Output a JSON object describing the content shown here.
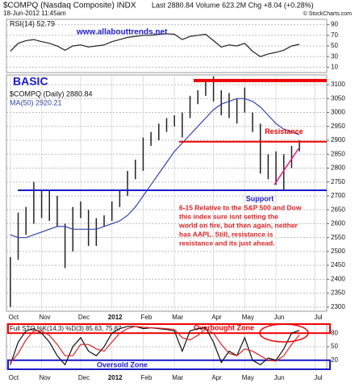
{
  "header": {
    "symbol": "$COMPQ (Nasdaq Composite) INDX",
    "date": "18-Jun-2012 11:45am",
    "quote": "Last 2880.84 Volume 623.2M Chg +8.04 (+0.28%)",
    "credit": "© StockCharts.com"
  },
  "chart_data": [
    {
      "type": "line",
      "title": "RSI(14) 52.79",
      "annotations": [
        "www.allabouttrends.net"
      ],
      "ylim": [
        0,
        100
      ],
      "yticks": [
        10,
        30,
        50,
        70,
        90
      ],
      "grid": true,
      "series": [
        {
          "name": "RSI(14)",
          "color": "#222222",
          "values": [
            40,
            55,
            60,
            62,
            58,
            55,
            50,
            42,
            50,
            52,
            48,
            50,
            52,
            58,
            62,
            66,
            68,
            70,
            70,
            72,
            73,
            72,
            62,
            68,
            70,
            72,
            60,
            48,
            52,
            50,
            55,
            40,
            30,
            35,
            38,
            42,
            50,
            53,
            null,
            null,
            null
          ]
        }
      ]
    },
    {
      "type": "ohlc",
      "title": "$COMPQ (Daily) 2880.84",
      "color": "#222222",
      "categories": [
        "Oct",
        null,
        null,
        null,
        "Nov",
        null,
        null,
        null,
        null,
        "Dec",
        null,
        null,
        null,
        "2012",
        null,
        null,
        null,
        "Feb",
        null,
        null,
        null,
        "Mar",
        null,
        null,
        null,
        null,
        "Apr",
        null,
        null,
        null,
        "May",
        null,
        null,
        null,
        "Jun",
        null,
        null,
        null,
        null,
        "Jul",
        null
      ],
      "high": [
        2480,
        2640,
        2660,
        2750,
        2720,
        2720,
        2700,
        2600,
        2660,
        2680,
        2650,
        2620,
        2630,
        2680,
        2720,
        2790,
        2830,
        2910,
        2930,
        2960,
        2980,
        2990,
        3000,
        3060,
        3080,
        3120,
        3130,
        3080,
        3070,
        3050,
        3090,
        3000,
        2960,
        2850,
        2860,
        2850,
        2880,
        2900,
        null,
        null,
        null
      ],
      "low": [
        2300,
        2470,
        2560,
        2600,
        2620,
        2610,
        2590,
        2440,
        2500,
        2620,
        2520,
        2520,
        2590,
        2610,
        2660,
        2700,
        2760,
        2790,
        2880,
        2900,
        2930,
        2950,
        2910,
        2980,
        3030,
        3060,
        3040,
        2990,
        2980,
        2960,
        3000,
        2930,
        2780,
        2760,
        2740,
        2720,
        2800,
        2860,
        null,
        null,
        null
      ],
      "series": [
        {
          "name": "MA(50) 2920.21",
          "color": "#3344aa",
          "values": [
            2560,
            2550,
            2550,
            2560,
            2570,
            2580,
            2590,
            2590,
            2580,
            2580,
            2580,
            2580,
            2590,
            2600,
            2610,
            2630,
            2660,
            2700,
            2740,
            2780,
            2820,
            2860,
            2890,
            2920,
            2950,
            2980,
            3010,
            3030,
            3040,
            3050,
            3050,
            3040,
            3020,
            2990,
            2960,
            2940,
            2930,
            2920,
            null,
            null,
            null
          ]
        }
      ],
      "ylim": [
        2285,
        3135
      ],
      "yticks": [
        2300,
        2350,
        2400,
        2450,
        2500,
        2550,
        2600,
        2650,
        2700,
        2750,
        2800,
        2850,
        2900,
        2950,
        3000,
        3050,
        3100
      ],
      "grid": true,
      "levels": [
        {
          "value": 3115,
          "color": "#ee0000"
        },
        {
          "value": 2895,
          "color": "#ee0000",
          "label": "Resistance"
        },
        {
          "value": 2720,
          "color": "#1a1acc",
          "label": "Support"
        }
      ],
      "annotations": [
        "BASIC"
      ],
      "note": [
        "6-15 Relative to the S&P 500 and Dow",
        "this index sure isnt setting the",
        "world on fire, but then again, neither",
        "has AAPL. Still, resistance is",
        "resistance and its just ahead."
      ]
    },
    {
      "type": "line",
      "title": "Full STO %K(14,3) %D(3) 85.63, 75.87",
      "categories": [
        "Oct",
        null,
        null,
        null,
        "Nov",
        null,
        null,
        null,
        null,
        "Dec",
        null,
        null,
        null,
        "2012",
        null,
        null,
        null,
        "Feb",
        null,
        null,
        null,
        "Mar",
        null,
        null,
        null,
        null,
        "Apr",
        null,
        null,
        null,
        "May",
        null,
        null,
        null,
        "Jun",
        null,
        null,
        null,
        null,
        "Jul",
        null
      ],
      "ylim": [
        0,
        100
      ],
      "yticks": [
        20,
        50,
        80
      ],
      "grid": true,
      "zones": [
        {
          "label": "Overbought Zone",
          "range": [
            80,
            100
          ],
          "color": "#ee0000"
        },
        {
          "label": "Oversold Zone",
          "range": [
            0,
            20
          ],
          "color": "#1a1acc"
        }
      ],
      "series": [
        {
          "name": "%K(14,3)",
          "color": "#111111",
          "values": [
            10,
            60,
            85,
            90,
            80,
            60,
            30,
            10,
            50,
            70,
            40,
            30,
            50,
            80,
            90,
            95,
            95,
            90,
            92,
            90,
            88,
            85,
            40,
            85,
            90,
            92,
            60,
            15,
            40,
            30,
            70,
            20,
            10,
            25,
            20,
            45,
            80,
            86,
            null,
            null,
            null
          ]
        },
        {
          "name": "%D(3)",
          "color": "#dd2222",
          "values": [
            15,
            35,
            65,
            85,
            85,
            75,
            55,
            30,
            30,
            55,
            55,
            45,
            40,
            60,
            80,
            90,
            95,
            93,
            92,
            91,
            90,
            88,
            70,
            65,
            75,
            90,
            80,
            55,
            35,
            30,
            45,
            40,
            30,
            20,
            18,
            30,
            55,
            76,
            null,
            null,
            null
          ]
        }
      ]
    }
  ]
}
